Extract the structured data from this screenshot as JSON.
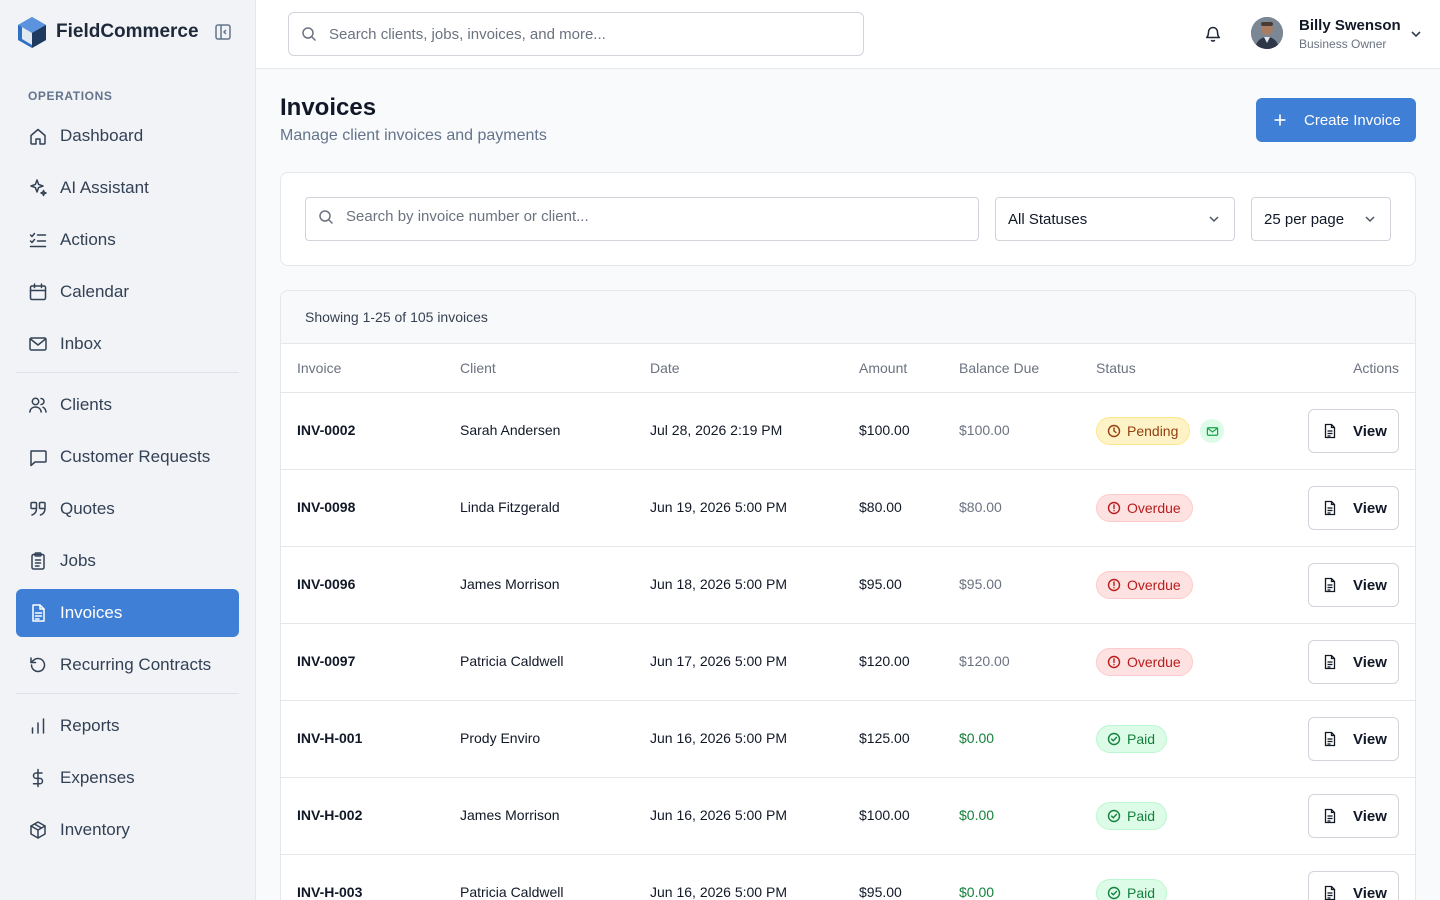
{
  "app": {
    "name": "FieldCommerce"
  },
  "sidebar": {
    "section_label": "OPERATIONS",
    "groups": [
      [
        {
          "label": "Dashboard",
          "icon": "home-icon"
        },
        {
          "label": "AI Assistant",
          "icon": "sparkles-icon"
        },
        {
          "label": "Actions",
          "icon": "list-checks-icon"
        },
        {
          "label": "Calendar",
          "icon": "calendar-icon"
        },
        {
          "label": "Inbox",
          "icon": "mail-icon"
        }
      ],
      [
        {
          "label": "Clients",
          "icon": "users-icon"
        },
        {
          "label": "Customer Requests",
          "icon": "message-square-icon"
        },
        {
          "label": "Quotes",
          "icon": "quote-icon"
        },
        {
          "label": "Jobs",
          "icon": "clipboard-icon"
        },
        {
          "label": "Invoices",
          "icon": "file-text-icon",
          "active": true
        },
        {
          "label": "Recurring Contracts",
          "icon": "rotate-ccw-icon"
        }
      ],
      [
        {
          "label": "Reports",
          "icon": "bar-chart-icon"
        },
        {
          "label": "Expenses",
          "icon": "dollar-sign-icon"
        },
        {
          "label": "Inventory",
          "icon": "package-icon"
        }
      ]
    ]
  },
  "topbar": {
    "search_placeholder": "Search clients, jobs, invoices, and more...",
    "user": {
      "name": "Billy Swenson",
      "role": "Business Owner"
    }
  },
  "page": {
    "title": "Invoices",
    "subtitle": "Manage client invoices and payments",
    "create_button": "Create Invoice"
  },
  "filters": {
    "search_placeholder": "Search by invoice number or client...",
    "status": "All Statuses",
    "per_page": "25 per page"
  },
  "table": {
    "summary": "Showing 1-25 of 105 invoices",
    "columns": [
      "Invoice",
      "Client",
      "Date",
      "Amount",
      "Balance Due",
      "Status",
      "Actions"
    ],
    "view_label": "View",
    "rows": [
      {
        "invoice": "INV-0002",
        "client": "Sarah Andersen",
        "date": "Jul 28, 2026 2:19 PM",
        "amount": "$100.00",
        "balance": "$100.00",
        "status": "Pending",
        "kind": "pending",
        "emailed": true
      },
      {
        "invoice": "INV-0098",
        "client": "Linda Fitzgerald",
        "date": "Jun 19, 2026 5:00 PM",
        "amount": "$80.00",
        "balance": "$80.00",
        "status": "Overdue",
        "kind": "overdue"
      },
      {
        "invoice": "INV-0096",
        "client": "James Morrison",
        "date": "Jun 18, 2026 5:00 PM",
        "amount": "$95.00",
        "balance": "$95.00",
        "status": "Overdue",
        "kind": "overdue"
      },
      {
        "invoice": "INV-0097",
        "client": "Patricia Caldwell",
        "date": "Jun 17, 2026 5:00 PM",
        "amount": "$120.00",
        "balance": "$120.00",
        "status": "Overdue",
        "kind": "overdue"
      },
      {
        "invoice": "INV-H-001",
        "client": "Prody Enviro",
        "date": "Jun 16, 2026 5:00 PM",
        "amount": "$125.00",
        "balance": "$0.00",
        "status": "Paid",
        "kind": "paid"
      },
      {
        "invoice": "INV-H-002",
        "client": "James Morrison",
        "date": "Jun 16, 2026 5:00 PM",
        "amount": "$100.00",
        "balance": "$0.00",
        "status": "Paid",
        "kind": "paid"
      },
      {
        "invoice": "INV-H-003",
        "client": "Patricia Caldwell",
        "date": "Jun 16, 2026 5:00 PM",
        "amount": "$95.00",
        "balance": "$0.00",
        "status": "Paid",
        "kind": "paid"
      }
    ]
  }
}
